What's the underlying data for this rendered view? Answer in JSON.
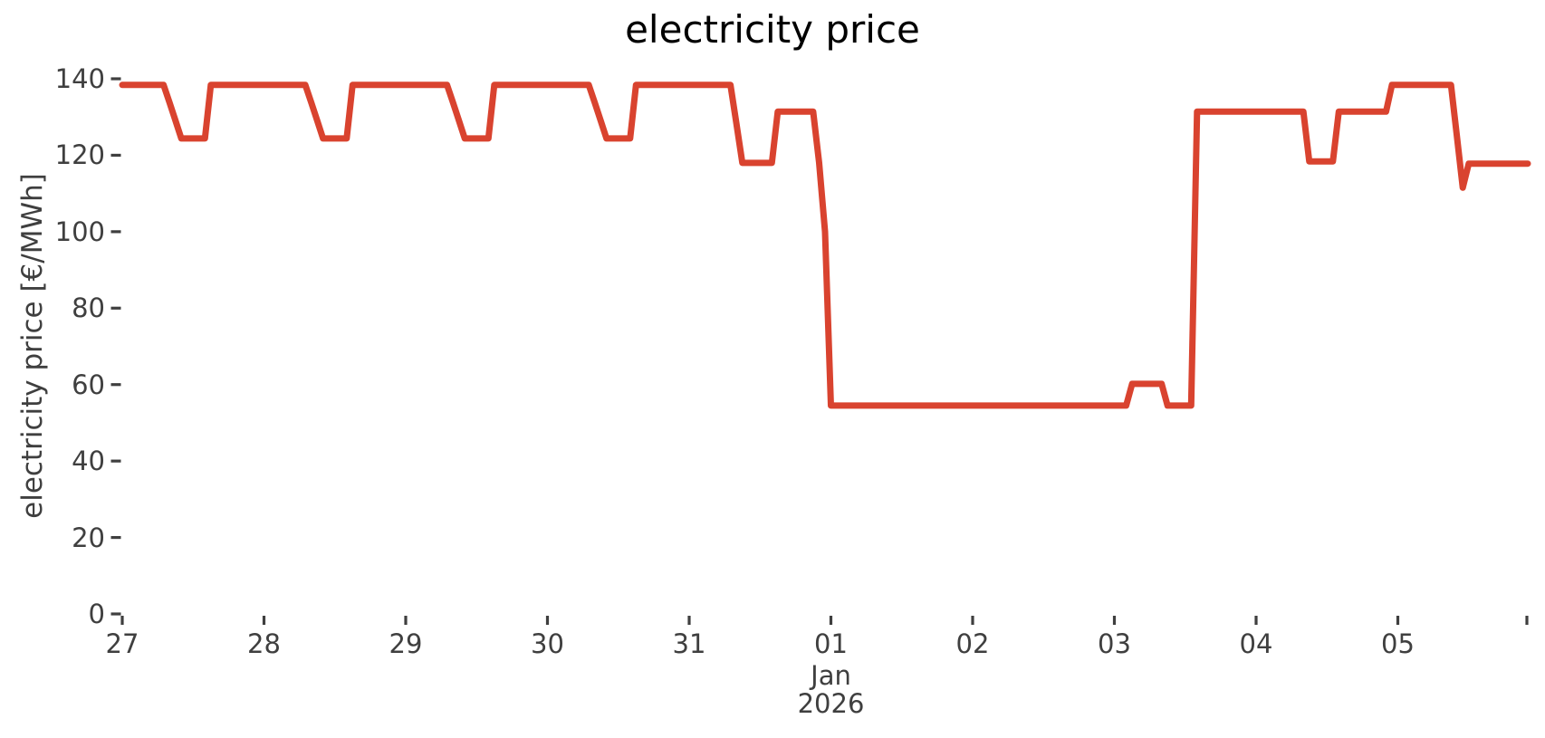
{
  "chart_data": {
    "type": "line",
    "title": "electricity price",
    "ylabel": "electricity price [€/MWh]",
    "series_name": "electricity price",
    "line_color": "#d9432f",
    "tick_color": "#3f3f3f",
    "title_color": "#000000",
    "x_start": "2025-12-27 00:00",
    "x_end": "2026-01-05 22:00",
    "x_resolution": "hourly",
    "ylim": [
      0,
      145
    ],
    "grid": false,
    "legend": "none",
    "yticks": [
      0,
      20,
      40,
      60,
      80,
      100,
      120,
      140
    ],
    "xticks": [
      {
        "label": "27",
        "day": 0
      },
      {
        "label": "28",
        "day": 1
      },
      {
        "label": "29",
        "day": 2
      },
      {
        "label": "30",
        "day": 3
      },
      {
        "label": "31",
        "day": 4
      },
      {
        "label": "01",
        "day": 5,
        "sublabels": [
          "Jan",
          "2026"
        ]
      },
      {
        "label": "02",
        "day": 6
      },
      {
        "label": "03",
        "day": 7
      },
      {
        "label": "04",
        "day": 8
      },
      {
        "label": "05",
        "day": 9
      }
    ],
    "hourly_runs_comment": "pairs of [number_of_hours, price_eur_per_mwh] starting 2025-12-27 00:00",
    "hourly_runs": [
      [
        8,
        138.4
      ],
      [
        1,
        133.8
      ],
      [
        1,
        129.1
      ],
      [
        5,
        124.4
      ],
      [
        9,
        138.4
      ],
      [
        8,
        138.4
      ],
      [
        1,
        133.8
      ],
      [
        1,
        129.1
      ],
      [
        5,
        124.4
      ],
      [
        9,
        138.4
      ],
      [
        8,
        138.4
      ],
      [
        1,
        133.8
      ],
      [
        1,
        129.1
      ],
      [
        5,
        124.4
      ],
      [
        9,
        138.4
      ],
      [
        8,
        138.4
      ],
      [
        1,
        133.8
      ],
      [
        1,
        129.1
      ],
      [
        5,
        124.4
      ],
      [
        9,
        138.4
      ],
      [
        8,
        138.4
      ],
      [
        1,
        128.2
      ],
      [
        6,
        118.0
      ],
      [
        7,
        131.4
      ],
      [
        1,
        118.0
      ],
      [
        1,
        100.0
      ],
      [
        48,
        54.5
      ],
      [
        3,
        54.5
      ],
      [
        6,
        60.2
      ],
      [
        5,
        54.5
      ],
      [
        10,
        131.4
      ],
      [
        9,
        131.4
      ],
      [
        5,
        118.4
      ],
      [
        9,
        131.4
      ],
      [
        1,
        138.4
      ],
      [
        10,
        138.4
      ],
      [
        1,
        125.0
      ],
      [
        1,
        111.5
      ],
      [
        11,
        117.8
      ]
    ]
  }
}
